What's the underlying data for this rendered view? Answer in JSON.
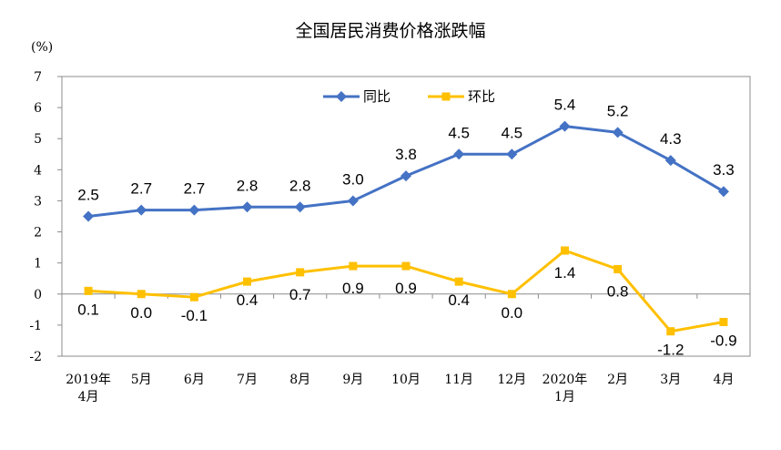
{
  "chart_data": {
    "type": "line",
    "title": "全国居民消费价格涨跌幅",
    "unit_label": "(%)",
    "ylim": [
      -2,
      7
    ],
    "yticks": [
      7,
      6,
      5,
      4,
      3,
      2,
      1,
      0,
      -1,
      -2
    ],
    "categories": [
      [
        "2019年",
        "4月"
      ],
      [
        "5月"
      ],
      [
        "6月"
      ],
      [
        "7月"
      ],
      [
        "8月"
      ],
      [
        "9月"
      ],
      [
        "10月"
      ],
      [
        "11月"
      ],
      [
        "12月"
      ],
      [
        "2020年",
        "1月"
      ],
      [
        "2月"
      ],
      [
        "3月"
      ],
      [
        "4月"
      ]
    ],
    "series": [
      {
        "name": "同比",
        "color": "#4472C4",
        "marker": "diamond",
        "values": [
          2.5,
          2.7,
          2.7,
          2.8,
          2.8,
          3.0,
          3.8,
          4.5,
          4.5,
          5.4,
          5.2,
          4.3,
          3.3
        ],
        "labels": [
          "2.5",
          "2.7",
          "2.7",
          "2.8",
          "2.8",
          "3.0",
          "3.8",
          "4.5",
          "4.5",
          "5.4",
          "5.2",
          "4.3",
          "3.3"
        ]
      },
      {
        "name": "环比",
        "color": "#FFC000",
        "marker": "square",
        "values": [
          0.1,
          0.0,
          -0.1,
          0.4,
          0.7,
          0.9,
          0.9,
          0.4,
          0.0,
          1.4,
          0.8,
          -1.2,
          -0.9
        ],
        "labels": [
          "0.1",
          "0.0",
          "-0.1",
          "0.4",
          "0.7",
          "0.9",
          "0.9",
          "0.4",
          "0.0",
          "1.4",
          "0.8",
          "-1.2",
          "-0.9"
        ]
      }
    ],
    "legend_position": "top-center",
    "grid": false
  }
}
